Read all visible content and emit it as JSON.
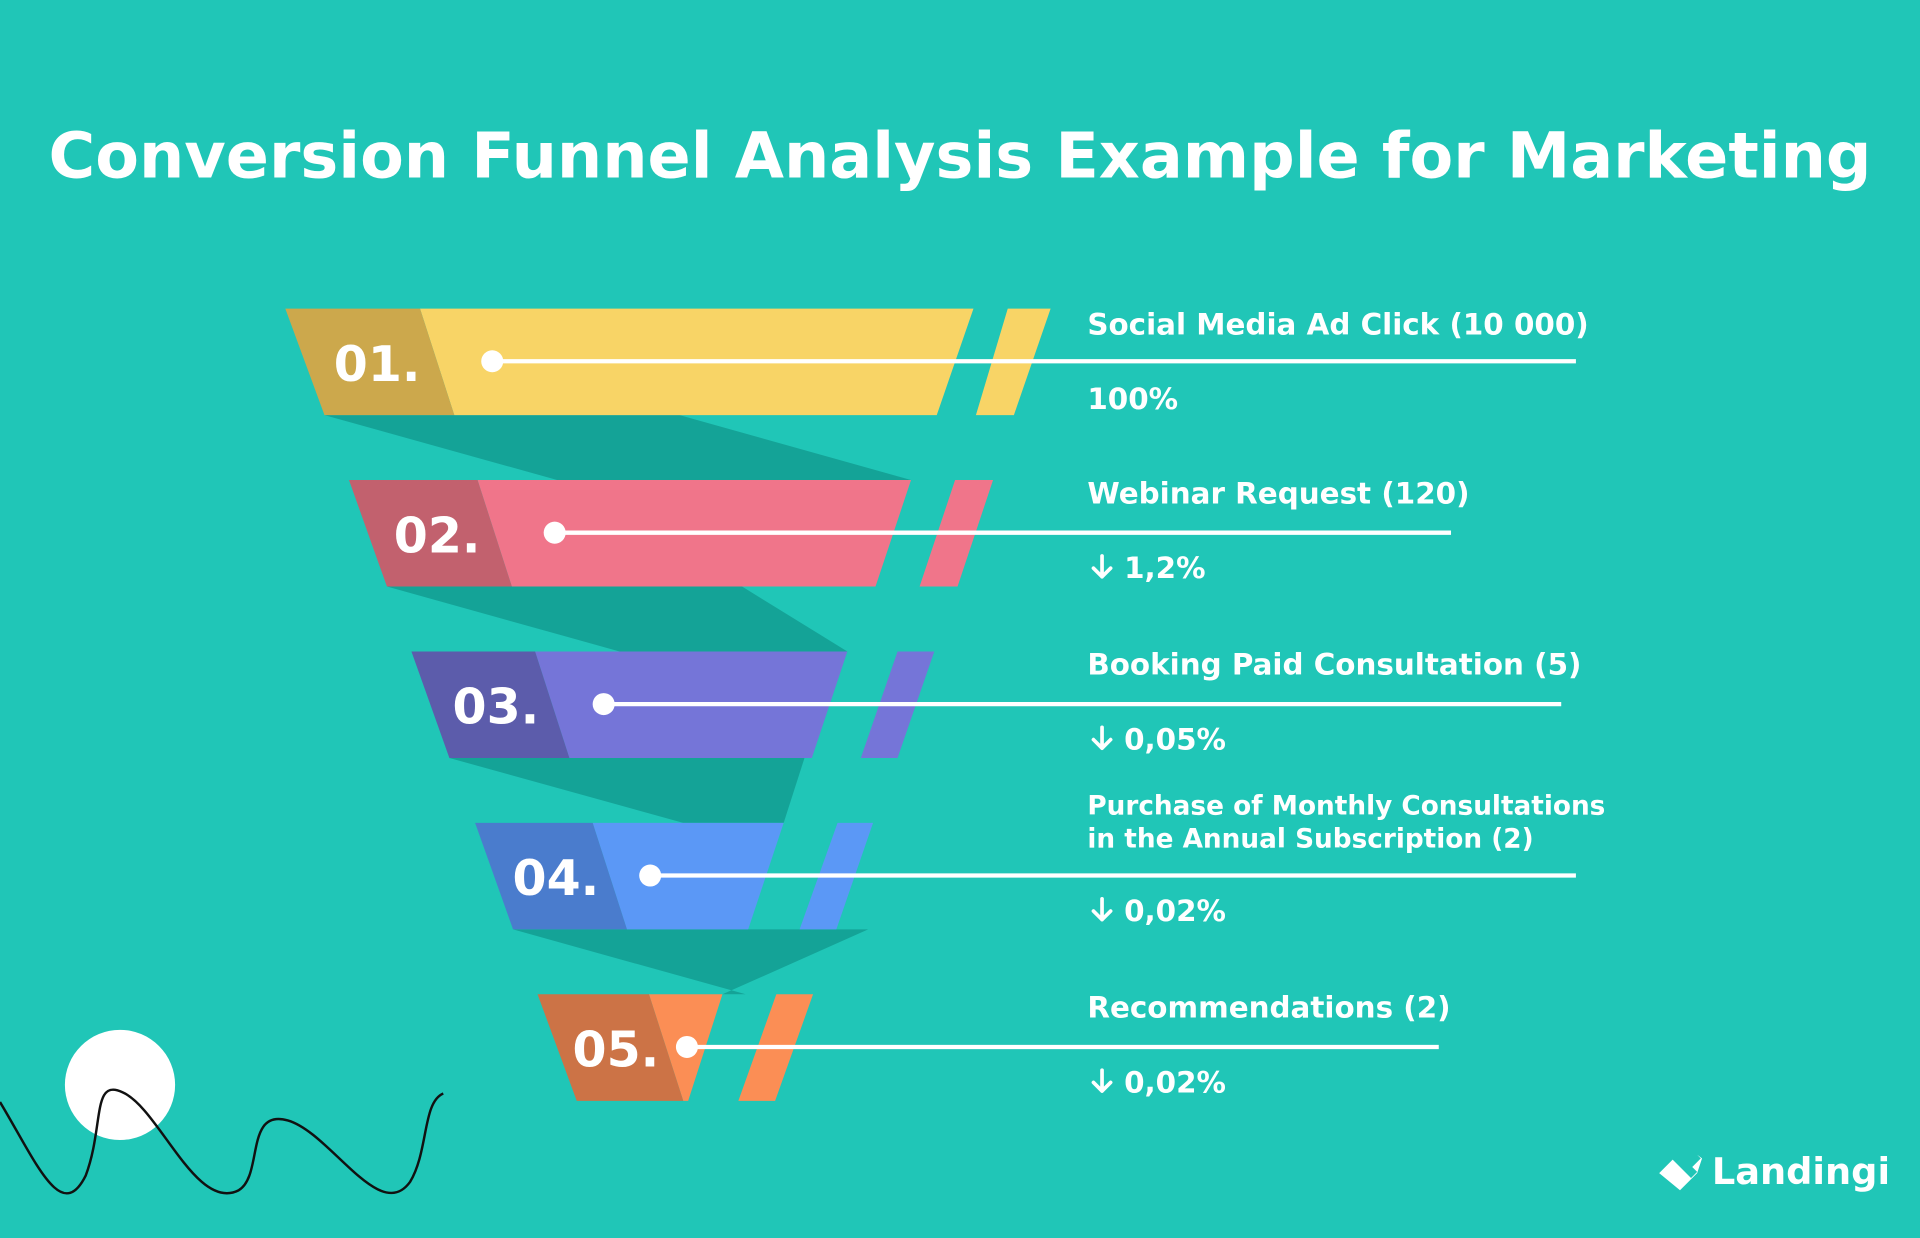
{
  "title": "Conversion Funnel Analysis Example for Marketing",
  "colors": {
    "background": "#20c6b7",
    "shadow": "#14a397"
  },
  "stages": [
    {
      "number": "01.",
      "label": "Social Media Ad Click (10 000)",
      "percent": "100%",
      "arrow": "",
      "color": "#f8d466",
      "dark": "#cca84c"
    },
    {
      "number": "02.",
      "label": "Webinar Request (120)",
      "percent": "1,2%",
      "arrow": "arrow-down-icon",
      "color": "#f0758a",
      "dark": "#c2616e"
    },
    {
      "number": "03.",
      "label": "Booking Paid Consultation (5)",
      "percent": "0,05%",
      "arrow": "arrow-down-icon",
      "color": "#7575d8",
      "dark": "#5c5cab"
    },
    {
      "number": "04.",
      "label_line1": "Purchase of Monthly Consultations",
      "label_line2": "in the Annual Subscription (2)",
      "percent": "0,02%",
      "arrow": "arrow-down-icon",
      "color": "#5b98f6",
      "dark": "#4a7ccd"
    },
    {
      "number": "05.",
      "label": "Recommendations (2)",
      "percent": "0,02%",
      "arrow": "arrow-down-icon",
      "color": "#fb8e55",
      "dark": "#cc7346"
    }
  ],
  "brand": {
    "name": "Landingi"
  }
}
